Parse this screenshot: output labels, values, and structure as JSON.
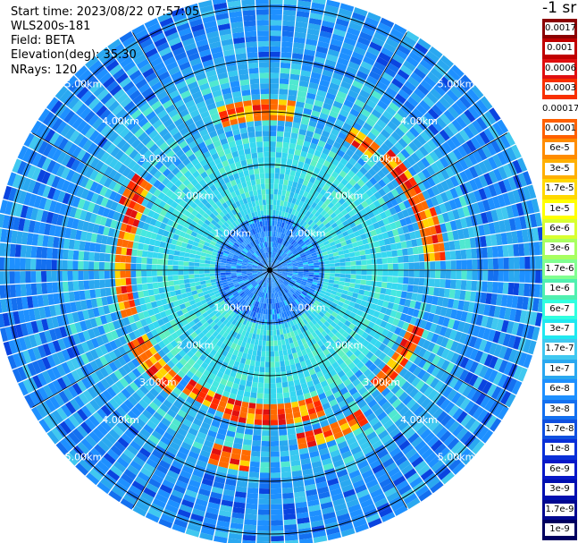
{
  "header": {
    "start_time": "Start time: 2023/08/22 07:57:05",
    "instrument": "WLS200s-181",
    "field": "Field: BETA",
    "elevation": "Elevation(deg): 35.30",
    "nrays": "NRays: 120"
  },
  "colorbar": {
    "unit_title": "-1 sr",
    "labels": [
      "0.0017",
      "0.001",
      "0.0006",
      "0.0003",
      "0.00017",
      "0.0001",
      "6e-5",
      "3e-5",
      "1.7e-5",
      "1e-5",
      "6e-6",
      "3e-6",
      "1.7e-6",
      "1e-6",
      "6e-7",
      "3e-7",
      "1.7e-7",
      "1e-7",
      "6e-8",
      "3e-8",
      "1.7e-8",
      "1e-8",
      "6e-9",
      "3e-9",
      "1.7e-9",
      "1e-9"
    ],
    "colors": [
      "#8b0000",
      "#c00000",
      "#e01010",
      "#f83000",
      "#ffffff",
      "#ff6000",
      "#ff8c00",
      "#ffb000",
      "#ffd800",
      "#ffff00",
      "#d8ff30",
      "#a8ff60",
      "#80ff90",
      "#50f0b0",
      "#30ffe0",
      "#20e8f0",
      "#40c8f0",
      "#2aa8f0",
      "#1e90ff",
      "#1470f0",
      "#1050e0",
      "#0a30d8",
      "#0818c8",
      "#0010b0",
      "#000890",
      "#000060"
    ]
  },
  "range_labels": [
    "1.00km",
    "2.00km",
    "3.00km",
    "4.00km",
    "5.00km"
  ],
  "ppi": {
    "elevation_deg": 35.3,
    "nrays": 120,
    "range_rings_km": [
      1,
      2,
      3,
      4,
      5
    ],
    "max_range_km": 5.2
  }
}
